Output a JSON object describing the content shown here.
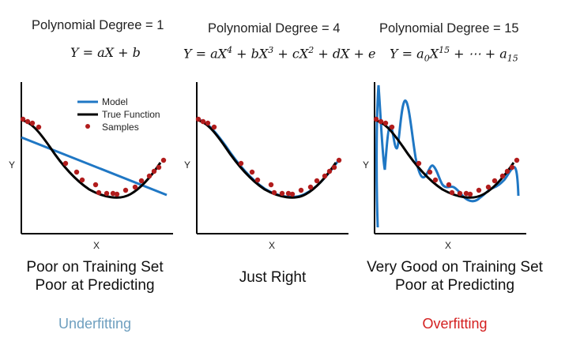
{
  "panels": [
    {
      "id": "degree-1",
      "degree_label": "Polynomial Degree = 1",
      "verdict_lines": [
        "Poor on Training Set",
        "Poor at Predicting"
      ],
      "fit_label": "Underfitting",
      "x_label": "X",
      "y_label": "Y"
    },
    {
      "id": "degree-4",
      "degree_label": "Polynomial Degree = 4",
      "verdict_lines": [
        "Just Right"
      ],
      "fit_label": "",
      "x_label": "X",
      "y_label": "Y"
    },
    {
      "id": "degree-15",
      "degree_label": "Polynomial Degree = 15",
      "verdict_lines": [
        "Very Good on Training Set",
        "Poor at Predicting"
      ],
      "fit_label": "Overfitting",
      "x_label": "X",
      "y_label": "Y"
    }
  ],
  "legend": {
    "model": "Model",
    "true_function": "True Function",
    "samples": "Samples"
  },
  "colors": {
    "model": "#1f77c4",
    "true_function": "#000000",
    "samples": "#b11c1c",
    "underfitting": "#6e9fbf",
    "overfitting": "#d42020"
  }
}
